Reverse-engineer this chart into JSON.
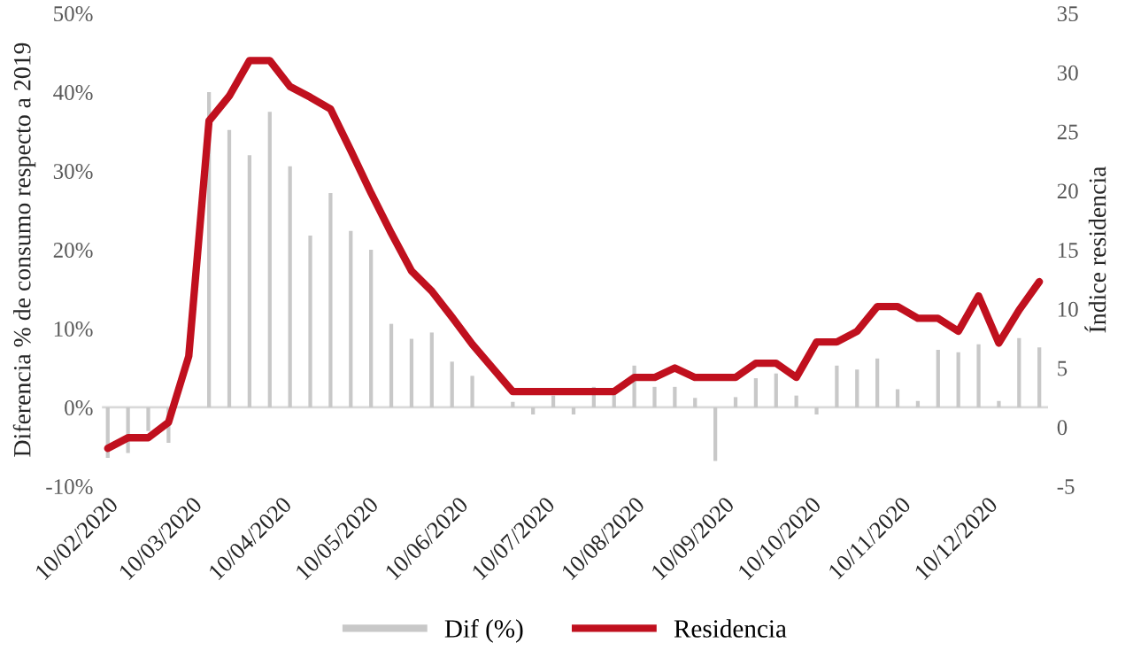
{
  "chart_data": {
    "type": "bar",
    "xlabel": null,
    "ylabel": "Diferencia % de consumo respecto a 2019",
    "y2label": "Índice residencia",
    "x": [
      "2020-02-10",
      "2020-02-17",
      "2020-02-24",
      "2020-03-02",
      "2020-03-09",
      "2020-03-16",
      "2020-03-23",
      "2020-03-30",
      "2020-04-06",
      "2020-04-13",
      "2020-04-20",
      "2020-04-27",
      "2020-05-04",
      "2020-05-11",
      "2020-05-18",
      "2020-05-25",
      "2020-06-01",
      "2020-06-08",
      "2020-06-15",
      "2020-06-22",
      "2020-06-29",
      "2020-07-06",
      "2020-07-13",
      "2020-07-20",
      "2020-07-27",
      "2020-08-03",
      "2020-08-10",
      "2020-08-17",
      "2020-08-24",
      "2020-08-31",
      "2020-09-07",
      "2020-09-14",
      "2020-09-21",
      "2020-09-28",
      "2020-10-05",
      "2020-10-12",
      "2020-10-19",
      "2020-10-26",
      "2020-11-02",
      "2020-11-09",
      "2020-11-16",
      "2020-11-23",
      "2020-11-30",
      "2020-12-07",
      "2020-12-14",
      "2020-12-21",
      "2020-12-28"
    ],
    "series": [
      {
        "name": "Dif (%)",
        "color": "#c8c8c8",
        "values": [
          -6.4,
          -5.8,
          -3.0,
          -4.5,
          null,
          40.0,
          35.2,
          32.0,
          37.5,
          30.6,
          21.8,
          27.2,
          22.4,
          20.0,
          10.6,
          8.7,
          9.5,
          5.8,
          4.0,
          null,
          0.7,
          -0.9,
          1.5,
          -0.9,
          2.6,
          2.0,
          5.3,
          2.6,
          2.6,
          1.2,
          -6.8,
          1.3,
          3.7,
          4.3,
          1.5,
          -0.9,
          5.3,
          4.8,
          6.2,
          2.3,
          0.8,
          7.3,
          7.0,
          8.0,
          0.8,
          8.8,
          7.6
        ]
      },
      {
        "name": "Residencia",
        "type": "line",
        "axis": "y2",
        "color": "#c0101e",
        "values": [
          -1.8,
          -0.9,
          -0.9,
          0.4,
          6.0,
          25.9,
          28.0,
          31.0,
          31.0,
          28.8,
          27.9,
          26.9,
          23.4,
          19.8,
          16.4,
          13.2,
          11.5,
          9.3,
          7.0,
          5.0,
          3.0,
          3.0,
          3.0,
          3.0,
          3.0,
          3.0,
          4.2,
          4.2,
          5.0,
          4.2,
          4.2,
          4.2,
          5.4,
          5.4,
          4.2,
          7.2,
          7.2,
          8.1,
          10.2,
          10.2,
          9.2,
          9.2,
          8.1,
          11.1,
          7.1,
          9.9,
          12.3
        ]
      }
    ],
    "xlim": [
      "2020-02-08",
      "2020-12-31"
    ],
    "xticks": [
      {
        "value": "2020-02-10",
        "label": "10/02/2020"
      },
      {
        "value": "2020-03-10",
        "label": "10/03/2020"
      },
      {
        "value": "2020-04-10",
        "label": "10/04/2020"
      },
      {
        "value": "2020-05-10",
        "label": "10/05/2020"
      },
      {
        "value": "2020-06-10",
        "label": "10/06/2020"
      },
      {
        "value": "2020-07-10",
        "label": "10/07/2020"
      },
      {
        "value": "2020-08-10",
        "label": "10/08/2020"
      },
      {
        "value": "2020-09-10",
        "label": "10/09/2020"
      },
      {
        "value": "2020-10-10",
        "label": "10/10/2020"
      },
      {
        "value": "2020-11-10",
        "label": "10/11/2020"
      },
      {
        "value": "2020-12-10",
        "label": "10/12/2020"
      }
    ],
    "ylim": [
      -10,
      50
    ],
    "yticks": [
      {
        "value": -10,
        "label": "-10%"
      },
      {
        "value": 0,
        "label": "0%"
      },
      {
        "value": 10,
        "label": "10%"
      },
      {
        "value": 20,
        "label": "20%"
      },
      {
        "value": 30,
        "label": "30%"
      },
      {
        "value": 40,
        "label": "40%"
      },
      {
        "value": 50,
        "label": "50%"
      }
    ],
    "y2lim": [
      -5,
      35
    ],
    "y2ticks": [
      {
        "value": -5,
        "label": "-5"
      },
      0,
      5,
      10,
      15,
      20,
      25,
      30,
      35
    ],
    "ref_lines": [
      {
        "axis": "y",
        "value": 0,
        "color": "#d9d9d9"
      }
    ],
    "grid": false,
    "legend": "bottom"
  }
}
